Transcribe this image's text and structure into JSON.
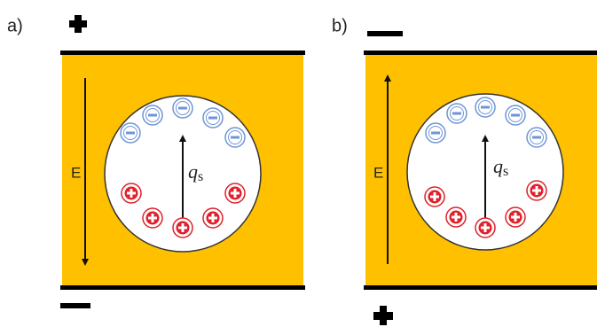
{
  "panels": [
    {
      "label": "a)",
      "field_label": "E",
      "charge_label": {
        "symbol": "q",
        "subscript": "s"
      }
    },
    {
      "label": "b)",
      "field_label": "E",
      "charge_label": {
        "symbol": "q",
        "subscript": "s"
      }
    }
  ]
}
